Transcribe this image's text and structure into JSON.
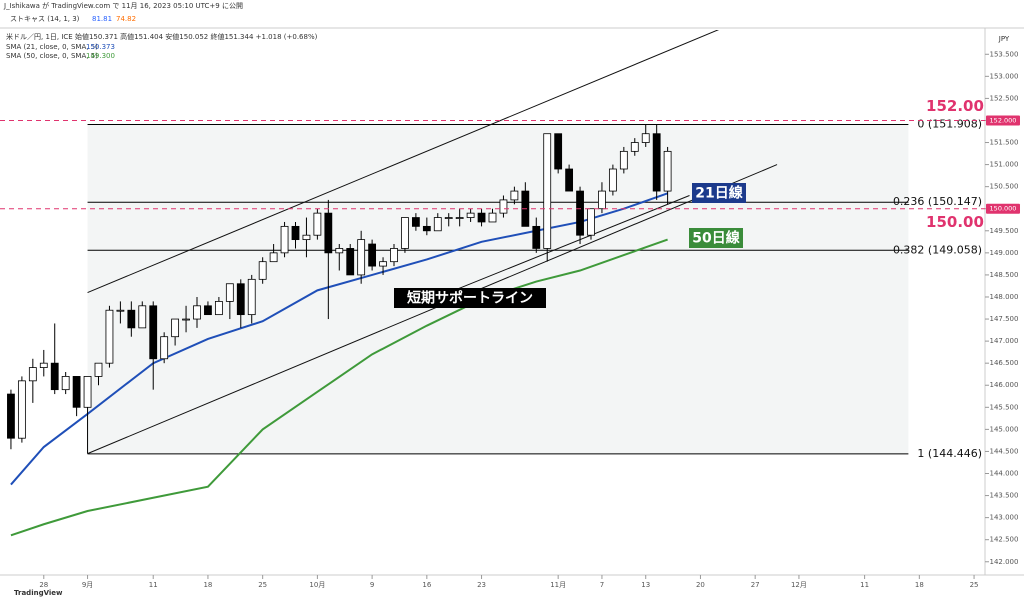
{
  "chart_data": {
    "type": "candlestick",
    "header": {
      "publisher": "J_Ishikawa が TradingView.com で 11月 16, 2023 05:10 UTC+9 に公開",
      "indicator": "ストキャス (14, 1, 3)",
      "indicator_values": [
        81.81,
        74.82
      ],
      "symbol": "米ドル／円, 1日, ICE  始値150.371 高値151.404 安値150.052 終値151.344 +1.018 (+0.68%)",
      "currency": "JPY",
      "brand": "TradingView"
    },
    "xlim": [
      -1,
      89
    ],
    "xticks": [
      {
        "value": 3,
        "label": "28"
      },
      {
        "value": 7,
        "label": "9月"
      },
      {
        "value": 13,
        "label": "11"
      },
      {
        "value": 18,
        "label": "18"
      },
      {
        "value": 23,
        "label": "25"
      },
      {
        "value": 28,
        "label": "10月"
      },
      {
        "value": 33,
        "label": "9"
      },
      {
        "value": 38,
        "label": "16"
      },
      {
        "value": 43,
        "label": "23"
      },
      {
        "value": 50,
        "label": "11月"
      },
      {
        "value": 54,
        "label": "7"
      },
      {
        "value": 58,
        "label": "13"
      },
      {
        "value": 63,
        "label": "20"
      },
      {
        "value": 68,
        "label": "27"
      },
      {
        "value": 72,
        "label": "12月"
      },
      {
        "value": 78,
        "label": "11"
      },
      {
        "value": 83,
        "label": "18"
      },
      {
        "value": 88,
        "label": "25"
      }
    ],
    "ylim": [
      141.7,
      154.05
    ],
    "yticks": [
      {
        "value": 142,
        "label": "142.000"
      },
      {
        "value": 142.5,
        "label": "142.500"
      },
      {
        "value": 143,
        "label": "143.000"
      },
      {
        "value": 143.5,
        "label": "143.500"
      },
      {
        "value": 144,
        "label": "144.000"
      },
      {
        "value": 144.5,
        "label": "144.500"
      },
      {
        "value": 145,
        "label": "145.000"
      },
      {
        "value": 145.5,
        "label": "145.500"
      },
      {
        "value": 146,
        "label": "146.000"
      },
      {
        "value": 146.5,
        "label": "146.500"
      },
      {
        "value": 147,
        "label": "147.000"
      },
      {
        "value": 147.5,
        "label": "147.500"
      },
      {
        "value": 148,
        "label": "148.000"
      },
      {
        "value": 148.5,
        "label": "148.500"
      },
      {
        "value": 149,
        "label": "149.000"
      },
      {
        "value": 149.5,
        "label": "149.500"
      },
      {
        "value": 150,
        "label": "150.000"
      },
      {
        "value": 150.5,
        "label": "150.500"
      },
      {
        "value": 151,
        "label": "151.000"
      },
      {
        "value": 151.5,
        "label": "151.500"
      },
      {
        "value": 152,
        "label": "152.000"
      },
      {
        "value": 152.5,
        "label": "152.500"
      },
      {
        "value": 153,
        "label": "153.000"
      },
      {
        "value": 153.5,
        "label": "153.500"
      }
    ],
    "up_color": "#ffffff",
    "down_color": "#000000",
    "x": [
      0,
      1,
      2,
      3,
      4,
      5,
      6,
      7,
      8,
      9,
      10,
      11,
      12,
      13,
      14,
      15,
      16,
      17,
      18,
      19,
      20,
      21,
      22,
      23,
      24,
      25,
      26,
      27,
      28,
      29,
      30,
      31,
      32,
      33,
      34,
      35,
      36,
      37,
      38,
      39,
      40,
      41,
      42,
      43,
      44,
      45,
      46,
      47,
      48,
      49,
      50,
      51,
      52,
      53,
      54,
      55,
      56,
      57,
      58,
      59,
      60
    ],
    "open": [
      145.8,
      144.8,
      146.1,
      146.4,
      146.5,
      145.9,
      146.2,
      145.5,
      146.2,
      146.5,
      147.7,
      147.7,
      147.3,
      147.8,
      146.6,
      147.1,
      147.5,
      147.5,
      147.8,
      147.6,
      147.9,
      148.3,
      147.6,
      148.4,
      148.8,
      149.0,
      149.6,
      149.3,
      149.4,
      149.9,
      149.0,
      149.1,
      148.5,
      149.2,
      148.7,
      148.8,
      149.1,
      149.8,
      149.6,
      149.5,
      149.8,
      149.8,
      149.8,
      149.9,
      149.7,
      149.9,
      150.2,
      150.4,
      149.6,
      149.1,
      151.7,
      150.9,
      150.4,
      149.4,
      150.0,
      150.4,
      150.9,
      151.3,
      151.5,
      151.7,
      150.4
    ],
    "high": [
      145.9,
      146.2,
      146.6,
      146.8,
      147.4,
      146.3,
      146.2,
      146.2,
      146.5,
      147.8,
      147.9,
      147.9,
      147.9,
      147.9,
      147.2,
      147.5,
      147.8,
      148.0,
      147.9,
      148.0,
      148.3,
      148.4,
      148.5,
      148.9,
      149.2,
      149.7,
      149.7,
      149.8,
      150.0,
      150.2,
      149.2,
      149.2,
      149.5,
      149.3,
      148.9,
      149.2,
      149.8,
      149.9,
      149.8,
      149.9,
      149.9,
      150.0,
      150.0,
      150.0,
      150.0,
      150.3,
      150.5,
      150.6,
      149.8,
      151.7,
      151.7,
      151.0,
      150.5,
      150.0,
      150.6,
      151.0,
      151.4,
      151.6,
      151.9,
      151.9,
      151.4
    ],
    "low": [
      144.55,
      144.7,
      145.6,
      146.2,
      145.8,
      145.8,
      145.3,
      144.45,
      146.0,
      146.4,
      147.4,
      147.1,
      147.3,
      145.9,
      146.5,
      146.9,
      147.2,
      147.3,
      147.6,
      147.6,
      147.5,
      147.3,
      147.4,
      148.3,
      148.8,
      148.9,
      149.1,
      148.9,
      149.3,
      147.5,
      148.6,
      148.5,
      148.3,
      148.6,
      148.5,
      148.7,
      149.0,
      149.5,
      149.4,
      149.5,
      149.6,
      149.6,
      149.7,
      149.6,
      149.7,
      149.8,
      150.1,
      149.6,
      149.0,
      148.8,
      150.8,
      150.4,
      149.2,
      149.3,
      149.9,
      150.3,
      150.8,
      151.2,
      151.4,
      150.2,
      150.1
    ],
    "close": [
      144.8,
      146.1,
      146.4,
      146.5,
      145.9,
      146.2,
      145.5,
      146.2,
      146.5,
      147.7,
      147.7,
      147.3,
      147.8,
      146.6,
      147.1,
      147.5,
      147.5,
      147.8,
      147.6,
      147.9,
      148.3,
      147.6,
      148.4,
      148.8,
      149.0,
      149.6,
      149.3,
      149.4,
      149.9,
      149.0,
      149.1,
      148.5,
      149.3,
      148.7,
      148.8,
      149.1,
      149.8,
      149.6,
      149.5,
      149.8,
      149.8,
      149.8,
      149.9,
      149.7,
      149.9,
      150.2,
      150.4,
      149.6,
      149.1,
      151.7,
      150.9,
      150.4,
      149.4,
      150.0,
      150.4,
      150.9,
      151.3,
      151.5,
      151.7,
      150.4,
      151.3
    ],
    "series": [
      {
        "name": "SMA (21, close, 0, SMA, 5)",
        "legend_value": "150.373",
        "color": "#1f4fb8",
        "x": [
          0,
          3,
          7,
          13,
          18,
          23,
          28,
          33,
          38,
          43,
          48,
          52,
          56,
          60
        ],
        "values": [
          143.75,
          144.6,
          145.35,
          146.5,
          147.05,
          147.45,
          148.15,
          148.5,
          148.85,
          149.25,
          149.5,
          149.7,
          150.0,
          150.35
        ]
      },
      {
        "name": "SMA (50, close, 0, SMA, 5)",
        "legend_value": "149.300",
        "color": "#3f9a3a",
        "x": [
          0,
          3,
          7,
          13,
          18,
          23,
          28,
          33,
          38,
          43,
          48,
          52,
          56,
          60
        ],
        "values": [
          142.6,
          142.85,
          143.15,
          143.45,
          143.7,
          145.0,
          145.85,
          146.7,
          147.35,
          147.95,
          148.35,
          148.6,
          148.95,
          149.3
        ]
      }
    ],
    "fib": {
      "x_start": 7,
      "x_end": 82,
      "levels": [
        {
          "value": 151.908,
          "label": "0 (151.908)"
        },
        {
          "value": 150.147,
          "label": "0.236 (150.147)"
        },
        {
          "value": 149.058,
          "label": "0.382 (149.058)"
        },
        {
          "value": 144.446,
          "label": "1 (144.446)"
        }
      ]
    },
    "trendlines": [
      {
        "x": [
          7,
          67
        ],
        "y": [
          148.1,
          154.3
        ]
      },
      {
        "x": [
          7,
          70
        ],
        "y": [
          144.45,
          151.0
        ]
      },
      {
        "x": [
          40,
          62
        ],
        "y": [
          148.1,
          150.3
        ]
      }
    ],
    "levels_color": "#e0336e",
    "levels": [
      {
        "value": 152,
        "label": "152.00",
        "axis_label": "152.000"
      },
      {
        "value": 150,
        "label": "150.00",
        "axis_label": "150.000"
      }
    ],
    "annotations": [
      {
        "text": "21日線",
        "color": "#1c3a8c"
      },
      {
        "text": "50日線",
        "color": "#3a8c3a"
      },
      {
        "text": "短期サポートライン",
        "color": "#000000"
      }
    ]
  }
}
